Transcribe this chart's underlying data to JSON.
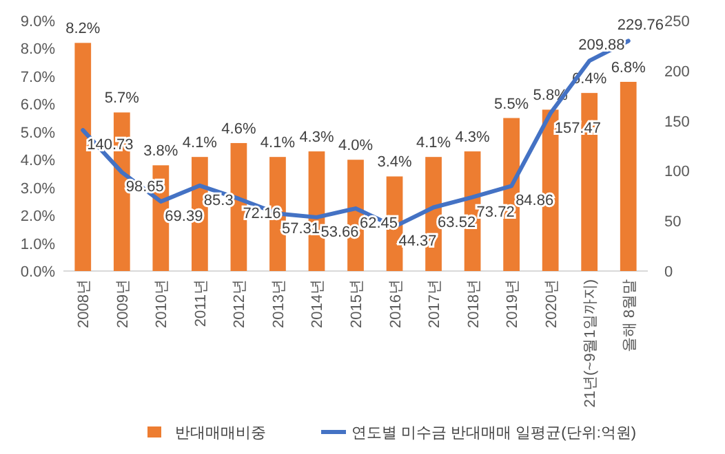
{
  "chart_data": {
    "type": "bar",
    "categories": [
      "2008년",
      "2009년",
      "2010년",
      "2011년",
      "2012년",
      "2013년",
      "2014년",
      "2015년",
      "2016년",
      "2017년",
      "2018년",
      "2019년",
      "2020년",
      "21년(~9월1일까지)",
      "올해 8월말"
    ],
    "series": [
      {
        "name": "반대매매비중",
        "color": "#ed7d31",
        "values": [
          8.2,
          5.7,
          3.8,
          4.1,
          4.6,
          4.1,
          4.3,
          4.0,
          3.4,
          4.1,
          4.3,
          5.5,
          5.8,
          6.4,
          6.8
        ],
        "value_labels": [
          "8.2%",
          "5.7%",
          "3.8%",
          "4.1%",
          "4.6%",
          "4.1%",
          "4.3%",
          "4.0%",
          "3.4%",
          "4.1%",
          "4.3%",
          "5.5%",
          "5.8%",
          "6.4%",
          "6.8%"
        ]
      },
      {
        "name": "연도별 미수금 반대매매 일평균(단위:억원)",
        "type": "line",
        "axis": "y2",
        "color": "#4472c4",
        "values": [
          140.73,
          98.65,
          69.39,
          85.3,
          72.16,
          57.31,
          53.66,
          62.45,
          44.37,
          63.52,
          73.72,
          84.86,
          157.47,
          209.88,
          229.76
        ],
        "value_labels": [
          "140.73",
          "98.65",
          "69.39",
          "85.3",
          "72.16",
          "57.31",
          "53.66",
          "62.45",
          "44.37",
          "63.52",
          "73.72",
          "84.86",
          "157.47",
          "209.88",
          "229.76"
        ]
      }
    ],
    "ylim": [
      0,
      9
    ],
    "yticks": [
      {
        "value": 0,
        "label": "0.0%"
      },
      {
        "value": 1,
        "label": "1.0%"
      },
      {
        "value": 2,
        "label": "2.0%"
      },
      {
        "value": 3,
        "label": "3.0%"
      },
      {
        "value": 4,
        "label": "4.0%"
      },
      {
        "value": 5,
        "label": "5.0%"
      },
      {
        "value": 6,
        "label": "6.0%"
      },
      {
        "value": 7,
        "label": "7.0%"
      },
      {
        "value": 8,
        "label": "8.0%"
      },
      {
        "value": 9,
        "label": "9.0%"
      }
    ],
    "y2lim": [
      0,
      250
    ],
    "y2ticks": [
      0,
      50,
      100,
      150,
      200,
      250
    ],
    "legend": "bottom",
    "grid": false
  }
}
